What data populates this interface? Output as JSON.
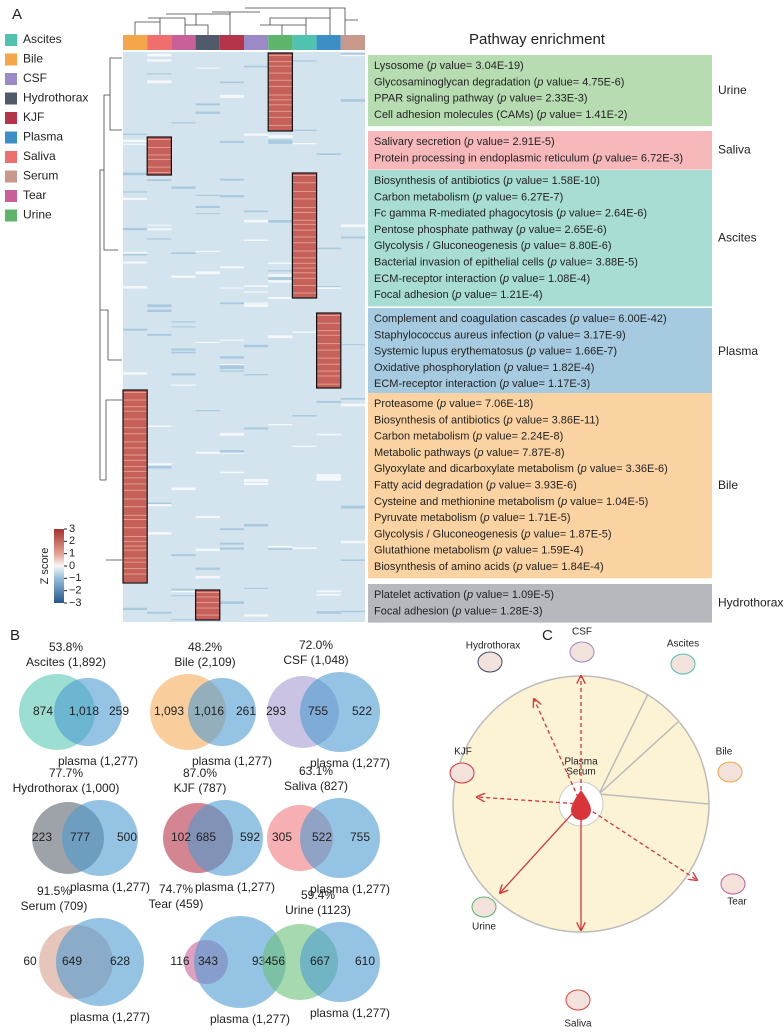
{
  "panel_labels": [
    "A",
    "B",
    "C"
  ],
  "legend": [
    {
      "name": "Ascites",
      "color": "#4fc3b0"
    },
    {
      "name": "Bile",
      "color": "#f5a54a"
    },
    {
      "name": "CSF",
      "color": "#9a8bc8"
    },
    {
      "name": "Hydrothorax",
      "color": "#4f5b6b"
    },
    {
      "name": "KJF",
      "color": "#b5344a"
    },
    {
      "name": "Plasma",
      "color": "#3b8fc6"
    },
    {
      "name": "Saliva",
      "color": "#ef6f6f"
    },
    {
      "name": "Serum",
      "color": "#c8998a"
    },
    {
      "name": "Tear",
      "color": "#c9609a"
    },
    {
      "name": "Urine",
      "color": "#5cb56a"
    }
  ],
  "colorbar": {
    "label": "Z score",
    "ticks": [
      3,
      2,
      1,
      0,
      {
        "value": -1,
        "label": "−1"
      },
      {
        "value": -2,
        "label": "−2"
      },
      {
        "value": -3,
        "label": "−3"
      }
    ]
  },
  "enrichment": {
    "title": "Pathway enrichment",
    "groups": [
      {
        "name": "Urine",
        "color": "#b7dcb1",
        "items": [
          [
            "Lysosome (",
            "p",
            " value= 3.04E-19)"
          ],
          [
            "Glycosaminoglycan degradation (",
            "p",
            " value= 4.75E-6)"
          ],
          [
            "PPAR signaling pathway (",
            "p",
            " value= 2.33E-3)"
          ],
          [
            "Cell adhesion molecules (CAMs) (",
            "p",
            " value= 1.41E-2)"
          ]
        ]
      },
      {
        "name": "Saliva",
        "color": "#f6b8bb",
        "items": [
          [
            "Salivary secretion (",
            "p",
            " value= 2.91E-5)"
          ],
          [
            "Protein processing in endoplasmic reticulum (",
            "p",
            " value= 6.72E-3)"
          ]
        ]
      },
      {
        "name": "Ascites",
        "color": "#a8ddd3",
        "items": [
          [
            "Biosynthesis of antibiotics (",
            "p",
            " value= 1.58E-10)"
          ],
          [
            "Carbon metabolism (",
            "p",
            " value= 6.27E-7)"
          ],
          [
            "Fc gamma R-mediated phagocytosis (",
            "p",
            " value= 2.64E-6)"
          ],
          [
            "Pentose phosphate pathway (",
            "p",
            " value= 2.65E-6)"
          ],
          [
            "Glycolysis / Gluconeogenesis (",
            "p",
            " value= 8.80E-6)"
          ],
          [
            "Bacterial invasion of epithelial cells (",
            "p",
            " value= 3.88E-5)"
          ],
          [
            "ECM-receptor interaction (",
            "p",
            " value= 1.08E-4)"
          ],
          [
            "Focal adhesion (",
            "p",
            " value= 1.21E-4)"
          ]
        ]
      },
      {
        "name": "Plasma",
        "color": "#a6cbe0",
        "items": [
          [
            "Complement and coagulation cascades (",
            "p",
            " value= 6.00E-42)"
          ],
          [
            "Staphylococcus aureus infection (",
            "p",
            " value= 3.17E-9)"
          ],
          [
            "Systemic lupus erythematosus (",
            "p",
            " value= 1.66E-7)"
          ],
          [
            "Oxidative phosphorylation (",
            "p",
            " value= 1.82E-4)"
          ],
          [
            "ECM-receptor interaction (",
            "p",
            " value= 1.17E-3)"
          ]
        ]
      },
      {
        "name": "Bile",
        "color": "#fbd3a2",
        "items": [
          [
            "Proteasome (",
            "p",
            " value= 7.06E-18)"
          ],
          [
            "Biosynthesis of antibiotics (",
            "p",
            " value= 3.86E-11)"
          ],
          [
            "Carbon metabolism (",
            "p",
            " value= 2.24E-8)"
          ],
          [
            "Metabolic pathways (",
            "p",
            " value= 7.87E-8)"
          ],
          [
            "Glyoxylate and dicarboxylate metabolism (",
            "p",
            " value= 3.36E-6)"
          ],
          [
            "Fatty acid degradation (",
            "p",
            " value= 3.93E-6)"
          ],
          [
            "Cysteine and methionine metabolism (",
            "p",
            " value= 1.04E-5)"
          ],
          [
            "Pyruvate metabolism (",
            "p",
            " value= 1.71E-5)"
          ],
          [
            "Glycolysis / Gluconeogenesis (",
            "p",
            " value= 1.87E-5)"
          ],
          [
            "Glutathione metabolism (",
            "p",
            " value= 1.59E-4)"
          ],
          [
            "Biosynthesis of amino acids (",
            "p",
            " value= 1.84E-4)"
          ]
        ]
      },
      {
        "name": "Hydrothorax",
        "color": "#b5b9be",
        "items": [
          [
            "Platelet activation (",
            "p",
            " value= 1.09E-5)"
          ],
          [
            "Focal adhesion (",
            "p",
            " value= 1.28E-3)"
          ]
        ]
      }
    ]
  },
  "venns": [
    {
      "percent": "53.8%",
      "name": "Ascites (1,892)",
      "label_color": "#222222",
      "fill": "#5cc8b6",
      "counts": [
        "874",
        "1,018",
        "259"
      ],
      "plasma": "plasma (1,277)"
    },
    {
      "percent": "48.2%",
      "name": "Bile (2,109)",
      "label_color": "#222222",
      "fill": "#f7ae5a",
      "counts": [
        "1,093",
        "1,016",
        "261"
      ],
      "plasma": "plasma (1,277)"
    },
    {
      "percent": "72.0%",
      "name": "CSF (1,048)",
      "label_color": "#222222",
      "fill": "#a79bd0",
      "counts": [
        "293",
        "755",
        "522"
      ],
      "plasma": "plasma (1,277)"
    },
    {
      "percent": "77.7%",
      "name": "Hydrothorax (1,000)",
      "label_color": "#e8553f",
      "fill": "#5d6470",
      "counts": [
        "223",
        "777",
        "500"
      ],
      "plasma": "plasma (1,277)"
    },
    {
      "percent": "87.0%",
      "name": "KJF (787)",
      "label_color": "#e8553f",
      "fill": "#b5344a",
      "counts": [
        "102",
        "685",
        "592"
      ],
      "plasma": "plasma (1,277)"
    },
    {
      "percent": "63.1%",
      "name": "Saliva (827)",
      "label_color": "#222222",
      "fill": "#f07b80",
      "counts": [
        "305",
        "522",
        "755"
      ],
      "plasma": "plasma (1,277)"
    },
    {
      "percent": "91.5%",
      "name": "Serum (709)",
      "label_color": "#e8553f",
      "fill": "#d6a08e",
      "counts": [
        "60",
        "649",
        "628"
      ],
      "plasma": "plasma (1,277)"
    },
    {
      "percent": "74.7%",
      "name": "Tear (459)",
      "label_color": "#222222",
      "fill": "#c9609a",
      "counts": [
        "116",
        "343",
        "934"
      ],
      "plasma": "plasma (1,277)"
    },
    {
      "percent": "59.4%",
      "name": "Urine (1123)",
      "label_color": "#222222",
      "fill": "#6cbf7a",
      "counts": [
        "456",
        "667",
        "610"
      ],
      "plasma": "plasma (1,277)"
    }
  ],
  "diagram": {
    "fluids": [
      {
        "name": "CSF",
        "color": "#9a8bc8"
      },
      {
        "name": "Ascites",
        "color": "#4fc3b0"
      },
      {
        "name": "Bile",
        "color": "#f5a54a"
      },
      {
        "name": "Tear",
        "color": "#c9609a"
      },
      {
        "name": "Saliva",
        "color": "#e8453f"
      },
      {
        "name": "Urine",
        "color": "#5cb56a"
      },
      {
        "name": "KJF",
        "color": "#d9343a"
      },
      {
        "name": "Hydrothorax",
        "color": "#3c4a6b"
      }
    ],
    "center": [
      {
        "name": "Plasma",
        "color": "#3b8fc6"
      },
      {
        "name": "Serum",
        "color": "#f5a54a"
      }
    ]
  }
}
